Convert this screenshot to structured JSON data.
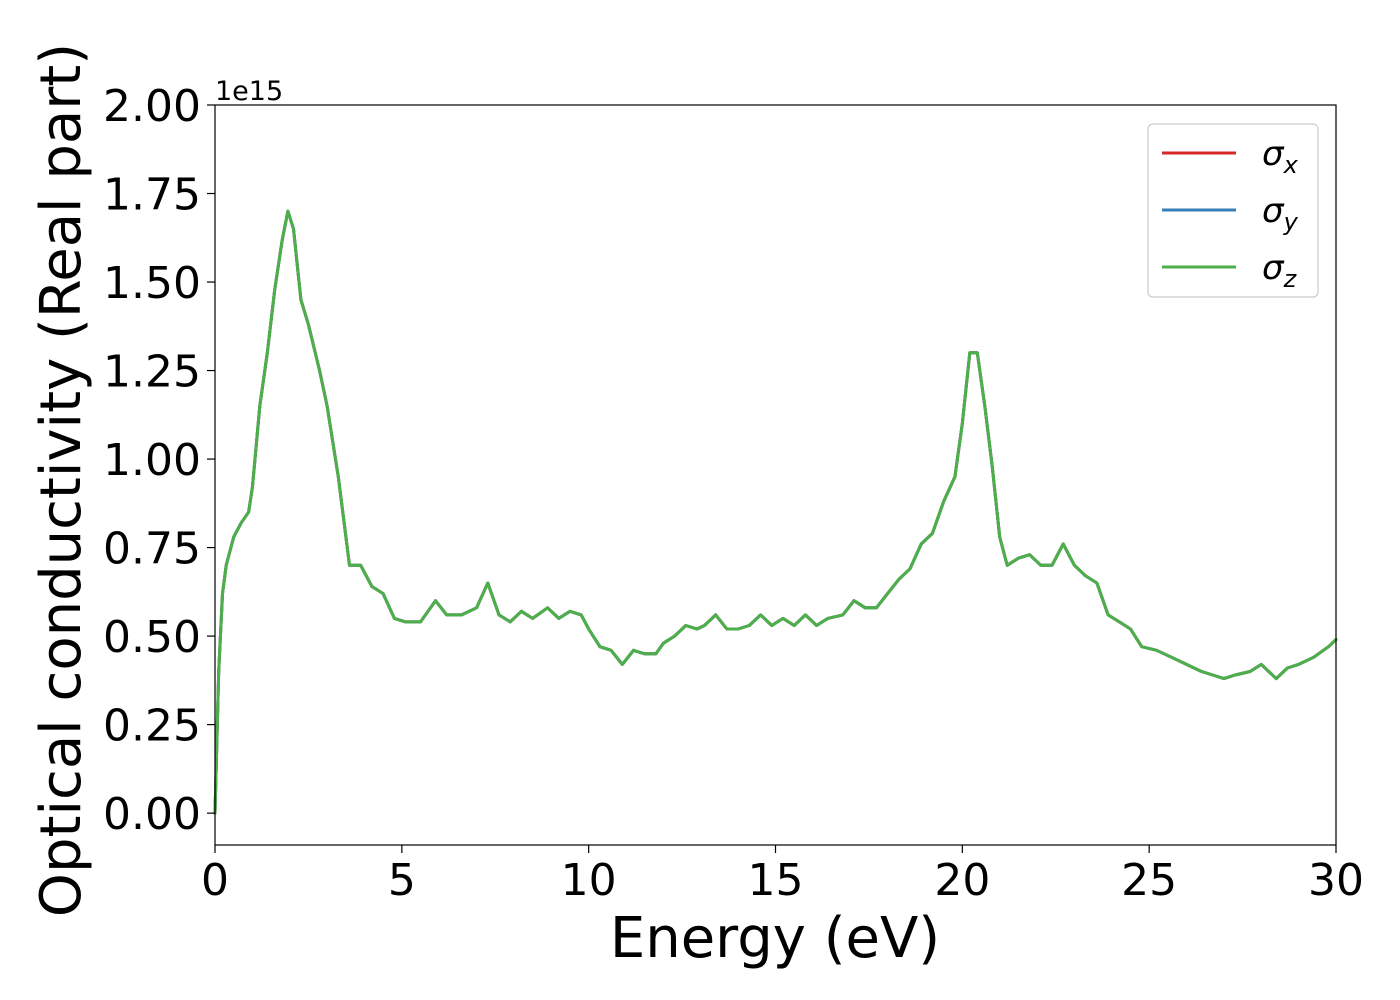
{
  "chart_data": {
    "type": "line",
    "title": "",
    "xlabel": "Energy (eV)",
    "ylabel": "Optical conductivity (Real part)",
    "y_offset_label": "1e15",
    "y_scale_factor": 1000000000000000.0,
    "xlim": [
      0,
      30
    ],
    "ylim": [
      -0.09,
      2.0
    ],
    "x_ticks": [
      0,
      5,
      10,
      15,
      20,
      25,
      30
    ],
    "x_tick_labels": [
      "0",
      "5",
      "10",
      "15",
      "20",
      "25",
      "30"
    ],
    "y_ticks": [
      0,
      0.25,
      0.5,
      0.75,
      1.0,
      1.25,
      1.5,
      1.75,
      2.0
    ],
    "y_tick_labels": [
      "0.00",
      "0.25",
      "0.50",
      "0.75",
      "1.00",
      "1.25",
      "1.50",
      "1.75",
      "2.00"
    ],
    "grid": false,
    "legend_position": "top-right",
    "x": [
      0,
      0.1,
      0.2,
      0.3,
      0.5,
      0.7,
      0.9,
      1.0,
      1.2,
      1.4,
      1.6,
      1.8,
      1.95,
      2.1,
      2.3,
      2.5,
      2.8,
      3.0,
      3.3,
      3.6,
      3.9,
      4.2,
      4.5,
      4.8,
      5.1,
      5.5,
      5.9,
      6.2,
      6.6,
      7.0,
      7.3,
      7.6,
      7.9,
      8.2,
      8.5,
      8.9,
      9.2,
      9.5,
      9.8,
      10.0,
      10.3,
      10.6,
      10.9,
      11.2,
      11.5,
      11.8,
      12.0,
      12.3,
      12.6,
      12.9,
      13.1,
      13.4,
      13.7,
      14.0,
      14.3,
      14.6,
      14.9,
      15.2,
      15.5,
      15.8,
      16.1,
      16.4,
      16.8,
      17.1,
      17.4,
      17.7,
      18.0,
      18.3,
      18.6,
      18.9,
      19.2,
      19.5,
      19.8,
      20.0,
      20.2,
      20.4,
      20.6,
      20.8,
      21.0,
      21.2,
      21.5,
      21.8,
      22.1,
      22.4,
      22.7,
      23.0,
      23.3,
      23.6,
      23.9,
      24.2,
      24.5,
      24.8,
      25.2,
      25.6,
      26.0,
      26.4,
      26.7,
      27.0,
      27.3,
      27.7,
      28.0,
      28.4,
      28.7,
      29.0,
      29.4,
      29.8,
      30.0
    ],
    "series": [
      {
        "name": "σ",
        "name_sub": "x",
        "color": "#d62728",
        "values": [
          0.0,
          0.4,
          0.62,
          0.7,
          0.78,
          0.82,
          0.85,
          0.92,
          1.15,
          1.3,
          1.48,
          1.62,
          1.7,
          1.65,
          1.45,
          1.38,
          1.25,
          1.15,
          0.95,
          0.7,
          0.7,
          0.64,
          0.62,
          0.55,
          0.54,
          0.54,
          0.6,
          0.56,
          0.56,
          0.58,
          0.65,
          0.56,
          0.54,
          0.57,
          0.55,
          0.58,
          0.55,
          0.57,
          0.56,
          0.52,
          0.47,
          0.46,
          0.42,
          0.46,
          0.45,
          0.45,
          0.48,
          0.5,
          0.53,
          0.52,
          0.53,
          0.56,
          0.52,
          0.52,
          0.53,
          0.56,
          0.53,
          0.55,
          0.53,
          0.56,
          0.53,
          0.55,
          0.56,
          0.6,
          0.58,
          0.58,
          0.62,
          0.66,
          0.69,
          0.76,
          0.79,
          0.88,
          0.95,
          1.1,
          1.3,
          1.3,
          1.15,
          0.98,
          0.78,
          0.7,
          0.72,
          0.73,
          0.7,
          0.7,
          0.76,
          0.7,
          0.67,
          0.65,
          0.56,
          0.54,
          0.52,
          0.47,
          0.46,
          0.44,
          0.42,
          0.4,
          0.39,
          0.38,
          0.39,
          0.4,
          0.42,
          0.38,
          0.41,
          0.42,
          0.44,
          0.47,
          0.49
        ]
      },
      {
        "name": "σ",
        "name_sub": "y",
        "color": "#377eb8",
        "values": [
          0.0,
          0.4,
          0.62,
          0.7,
          0.78,
          0.82,
          0.85,
          0.92,
          1.15,
          1.3,
          1.48,
          1.62,
          1.7,
          1.65,
          1.45,
          1.38,
          1.25,
          1.15,
          0.95,
          0.7,
          0.7,
          0.64,
          0.62,
          0.55,
          0.54,
          0.54,
          0.6,
          0.56,
          0.56,
          0.58,
          0.65,
          0.56,
          0.54,
          0.57,
          0.55,
          0.58,
          0.55,
          0.57,
          0.56,
          0.52,
          0.47,
          0.46,
          0.42,
          0.46,
          0.45,
          0.45,
          0.48,
          0.5,
          0.53,
          0.52,
          0.53,
          0.56,
          0.52,
          0.52,
          0.53,
          0.56,
          0.53,
          0.55,
          0.53,
          0.56,
          0.53,
          0.55,
          0.56,
          0.6,
          0.58,
          0.58,
          0.62,
          0.66,
          0.69,
          0.76,
          0.79,
          0.88,
          0.95,
          1.1,
          1.3,
          1.3,
          1.15,
          0.98,
          0.78,
          0.7,
          0.72,
          0.73,
          0.7,
          0.7,
          0.76,
          0.7,
          0.67,
          0.65,
          0.56,
          0.54,
          0.52,
          0.47,
          0.46,
          0.44,
          0.42,
          0.4,
          0.39,
          0.38,
          0.39,
          0.4,
          0.42,
          0.38,
          0.41,
          0.42,
          0.44,
          0.47,
          0.49
        ]
      },
      {
        "name": "σ",
        "name_sub": "z",
        "color": "#4daf4a",
        "values": [
          0.0,
          0.4,
          0.62,
          0.7,
          0.78,
          0.82,
          0.85,
          0.92,
          1.15,
          1.3,
          1.48,
          1.62,
          1.7,
          1.65,
          1.45,
          1.38,
          1.25,
          1.15,
          0.95,
          0.7,
          0.7,
          0.64,
          0.62,
          0.55,
          0.54,
          0.54,
          0.6,
          0.56,
          0.56,
          0.58,
          0.65,
          0.56,
          0.54,
          0.57,
          0.55,
          0.58,
          0.55,
          0.57,
          0.56,
          0.52,
          0.47,
          0.46,
          0.42,
          0.46,
          0.45,
          0.45,
          0.48,
          0.5,
          0.53,
          0.52,
          0.53,
          0.56,
          0.52,
          0.52,
          0.53,
          0.56,
          0.53,
          0.55,
          0.53,
          0.56,
          0.53,
          0.55,
          0.56,
          0.6,
          0.58,
          0.58,
          0.62,
          0.66,
          0.69,
          0.76,
          0.79,
          0.88,
          0.95,
          1.1,
          1.3,
          1.3,
          1.15,
          0.98,
          0.78,
          0.7,
          0.72,
          0.73,
          0.7,
          0.7,
          0.76,
          0.7,
          0.67,
          0.65,
          0.56,
          0.54,
          0.52,
          0.47,
          0.46,
          0.44,
          0.42,
          0.4,
          0.39,
          0.38,
          0.39,
          0.4,
          0.42,
          0.38,
          0.41,
          0.42,
          0.44,
          0.47,
          0.49
        ]
      }
    ]
  }
}
